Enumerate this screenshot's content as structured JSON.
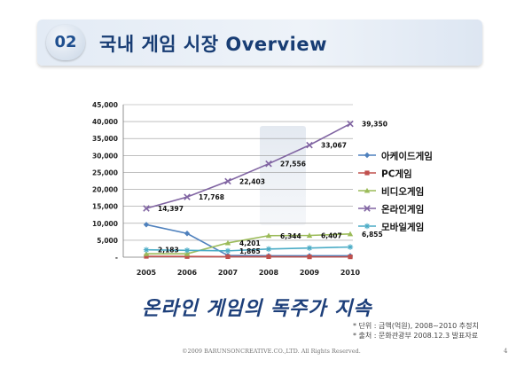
{
  "slide": {
    "number": "02",
    "title": "국내 게임 시장 Overview",
    "subtitle": "온라인 게임의 독주가 지속",
    "notes": [
      "* 단위 : 금액(억원), 2008~2010 추정치",
      "* 출처 : 문화관광부 2008.12.3 발표자료"
    ],
    "footer": "©2009 BARUNSONCREATIVE.CO.,LTD. All Rights Reserved.",
    "page_number": "4"
  },
  "chart_data": {
    "type": "line",
    "x": [
      "2005",
      "2006",
      "2007",
      "2008",
      "2009",
      "2010"
    ],
    "ylim": [
      0,
      45000
    ],
    "yticks": [
      "-",
      "5,000",
      "10,000",
      "15,000",
      "20,000",
      "25,000",
      "30,000",
      "35,000",
      "40,000",
      "45,000"
    ],
    "legend_position": "right",
    "series": [
      {
        "name": "아케이드게임",
        "color": "#4f81bd",
        "marker": "diamond",
        "values": [
          9600,
          7000,
          500,
          400,
          400,
          400
        ]
      },
      {
        "name": "PC게임",
        "color": "#c0504d",
        "marker": "square",
        "values": [
          250,
          200,
          150,
          150,
          100,
          100
        ]
      },
      {
        "name": "비디오게임",
        "color": "#9bbb59",
        "marker": "triangle",
        "values": [
          1000,
          1000,
          4201,
          6344,
          6407,
          6855
        ]
      },
      {
        "name": "온라인게임",
        "color": "#8064a2",
        "marker": "x",
        "values": [
          14397,
          17768,
          22403,
          27556,
          33067,
          39350
        ]
      },
      {
        "name": "모바일게임",
        "color": "#4bacc6",
        "marker": "star",
        "values": [
          2183,
          2000,
          1865,
          2400,
          2700,
          3000
        ]
      }
    ],
    "data_labels": [
      {
        "text": "14,397",
        "x": "2005",
        "y": 14397
      },
      {
        "text": "17,768",
        "x": "2006",
        "y": 17768
      },
      {
        "text": "22,403",
        "x": "2007",
        "y": 22403
      },
      {
        "text": "27,556",
        "x": "2008",
        "y": 27556
      },
      {
        "text": "33,067",
        "x": "2009",
        "y": 33067
      },
      {
        "text": "39,350",
        "x": "2010",
        "y": 39350
      },
      {
        "text": "2,183",
        "x": "2005",
        "y": 2183
      },
      {
        "text": "1,865",
        "x": "2007",
        "y": 1865
      },
      {
        "text": "4,201",
        "x": "2007",
        "y": 4201
      },
      {
        "text": "6,344",
        "x": "2008",
        "y": 6344
      },
      {
        "text": "6,407",
        "x": "2009",
        "y": 6407
      },
      {
        "text": "6,855",
        "x": "2010",
        "y": 6855
      }
    ]
  }
}
